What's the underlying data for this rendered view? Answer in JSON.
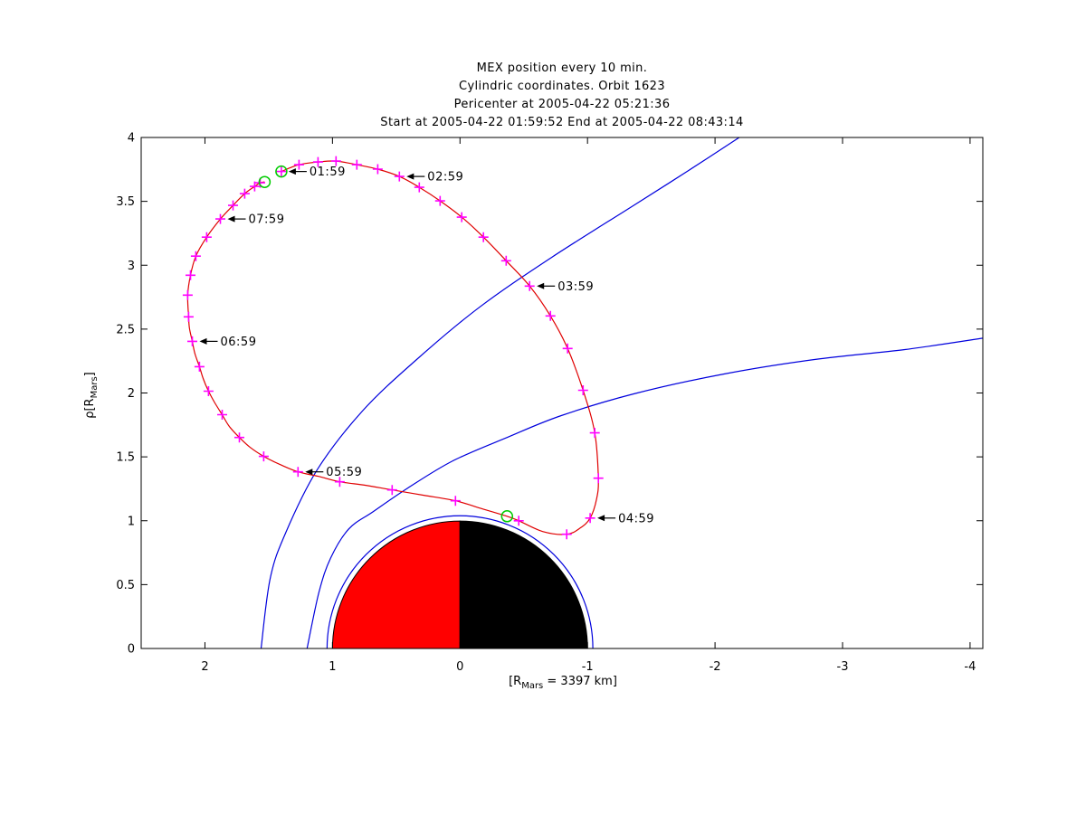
{
  "titles": [
    "MEX position every 10 min.",
    "Cylindric coordinates. Orbit 1623",
    "Pericenter at 2005-04-22 05:21:36",
    "Start at 2005-04-22 01:59:52 End at 2005-04-22 08:43:14"
  ],
  "axes": {
    "x_label_prefix": "[R",
    "x_label_sub": "Mars",
    "x_label_suffix": " = 3397 km]",
    "y_label_prefix": "ρ[R",
    "y_label_sub": "Mars",
    "y_label_suffix": "]"
  },
  "chart_data": {
    "type": "line",
    "title": "MEX position every 10 min. Cylindric coordinates. Orbit 1623",
    "xlabel": "[R_Mars = 3397 km]",
    "ylabel": "rho [R_Mars]",
    "xlim": [
      2.5,
      -4.1
    ],
    "ylim": [
      0,
      4
    ],
    "x_tick_values": [
      2,
      1,
      0,
      -1,
      -2,
      -3,
      -4
    ],
    "x_tick_labels": [
      "2",
      "1",
      "0",
      "-1",
      "-2",
      "-3",
      "-4"
    ],
    "y_tick_values": [
      0,
      0.5,
      1,
      1.5,
      2,
      2.5,
      3,
      3.5,
      4
    ],
    "y_tick_labels": [
      "0",
      "0.5",
      "1",
      "1.5",
      "2",
      "2.5",
      "3",
      "3.5",
      "4"
    ],
    "grid": false,
    "orbit_path": [
      [
        1.401,
        3.734
      ],
      [
        1.262,
        3.787
      ],
      [
        1.113,
        3.808
      ],
      [
        0.972,
        3.815
      ],
      [
        0.809,
        3.787
      ],
      [
        0.645,
        3.752
      ],
      [
        0.475,
        3.695
      ],
      [
        0.319,
        3.61
      ],
      [
        0.156,
        3.504
      ],
      [
        -0.014,
        3.376
      ],
      [
        -0.184,
        3.22
      ],
      [
        -0.362,
        3.035
      ],
      [
        -0.546,
        2.837
      ],
      [
        -0.709,
        2.603
      ],
      [
        -0.844,
        2.348
      ],
      [
        -0.965,
        2.021
      ],
      [
        -1.057,
        1.688
      ],
      [
        -1.085,
        1.333
      ],
      [
        -1.071,
        1.17
      ],
      [
        -1.021,
        1.021
      ],
      [
        -0.943,
        0.943
      ],
      [
        -0.837,
        0.894
      ],
      [
        -0.652,
        0.915
      ],
      [
        -0.461,
        1.0
      ],
      [
        -0.369,
        1.035
      ],
      [
        -0.156,
        1.099
      ],
      [
        0.035,
        1.156
      ],
      [
        0.284,
        1.199
      ],
      [
        0.532,
        1.241
      ],
      [
        0.738,
        1.277
      ],
      [
        0.943,
        1.305
      ],
      [
        1.113,
        1.348
      ],
      [
        1.27,
        1.383
      ],
      [
        1.411,
        1.44
      ],
      [
        1.539,
        1.504
      ],
      [
        1.645,
        1.574
      ],
      [
        1.73,
        1.652
      ],
      [
        1.809,
        1.738
      ],
      [
        1.865,
        1.83
      ],
      [
        1.922,
        1.922
      ],
      [
        1.972,
        2.014
      ],
      [
        2.014,
        2.113
      ],
      [
        2.043,
        2.206
      ],
      [
        2.078,
        2.305
      ],
      [
        2.099,
        2.404
      ],
      [
        2.121,
        2.504
      ],
      [
        2.128,
        2.596
      ],
      [
        2.135,
        2.766
      ],
      [
        2.113,
        2.922
      ],
      [
        2.071,
        3.071
      ],
      [
        1.986,
        3.22
      ],
      [
        1.879,
        3.362
      ],
      [
        1.78,
        3.468
      ],
      [
        1.688,
        3.56
      ],
      [
        1.61,
        3.617
      ],
      [
        1.567,
        3.645
      ],
      [
        1.532,
        3.652
      ]
    ],
    "markers_10min": [
      [
        1.401,
        3.734
      ],
      [
        1.262,
        3.787
      ],
      [
        1.113,
        3.808
      ],
      [
        0.972,
        3.815
      ],
      [
        0.809,
        3.787
      ],
      [
        0.645,
        3.752
      ],
      [
        0.475,
        3.695
      ],
      [
        0.319,
        3.61
      ],
      [
        0.156,
        3.504
      ],
      [
        -0.014,
        3.376
      ],
      [
        -0.184,
        3.22
      ],
      [
        -0.362,
        3.035
      ],
      [
        -0.546,
        2.837
      ],
      [
        -0.709,
        2.603
      ],
      [
        -0.844,
        2.348
      ],
      [
        -0.965,
        2.021
      ],
      [
        -1.057,
        1.688
      ],
      [
        -1.085,
        1.333
      ],
      [
        -1.021,
        1.021
      ],
      [
        -0.837,
        0.894
      ],
      [
        -0.461,
        1.0
      ],
      [
        0.035,
        1.156
      ],
      [
        0.532,
        1.241
      ],
      [
        0.943,
        1.305
      ],
      [
        1.27,
        1.383
      ],
      [
        1.539,
        1.504
      ],
      [
        1.73,
        1.652
      ],
      [
        1.865,
        1.83
      ],
      [
        1.972,
        2.014
      ],
      [
        2.043,
        2.206
      ],
      [
        2.099,
        2.404
      ],
      [
        2.128,
        2.596
      ],
      [
        2.135,
        2.766
      ],
      [
        2.113,
        2.922
      ],
      [
        2.071,
        3.071
      ],
      [
        1.986,
        3.22
      ],
      [
        1.879,
        3.362
      ],
      [
        1.78,
        3.468
      ],
      [
        1.688,
        3.56
      ],
      [
        1.61,
        3.617
      ],
      [
        1.567,
        3.645
      ]
    ],
    "start_point": [
      1.401,
      3.734
    ],
    "end_point": [
      1.532,
      3.652
    ],
    "pericenter_point": [
      -0.369,
      1.035
    ],
    "bow_shock": [
      [
        1.56,
        0.0
      ],
      [
        1.489,
        0.546
      ],
      [
        1.369,
        0.901
      ],
      [
        1.121,
        1.397
      ],
      [
        0.766,
        1.858
      ],
      [
        0.34,
        2.262
      ],
      [
        -0.156,
        2.674
      ],
      [
        -0.723,
        3.064
      ],
      [
        -1.362,
        3.468
      ],
      [
        -1.787,
        3.738
      ],
      [
        -2.22,
        4.02
      ]
    ],
    "mpb": [
      [
        1.199,
        0.0
      ],
      [
        1.106,
        0.44
      ],
      [
        1.014,
        0.709
      ],
      [
        0.872,
        0.936
      ],
      [
        0.681,
        1.071
      ],
      [
        0.411,
        1.255
      ],
      [
        0.057,
        1.468
      ],
      [
        -0.369,
        1.652
      ],
      [
        -0.794,
        1.823
      ],
      [
        -1.362,
        1.993
      ],
      [
        -2.071,
        2.149
      ],
      [
        -2.78,
        2.262
      ],
      [
        -3.489,
        2.34
      ],
      [
        -4.128,
        2.433
      ]
    ],
    "inner_boundary_radius": 1.042,
    "planet": {
      "radius": 1.0,
      "dayside_color": "#ff0000",
      "nightside_color": "#000000"
    },
    "annotations": [
      {
        "label": "01:59",
        "x": 1.401,
        "rho": 3.734
      },
      {
        "label": "02:59",
        "x": 0.475,
        "rho": 3.695
      },
      {
        "label": "03:59",
        "x": -0.546,
        "rho": 2.837
      },
      {
        "label": "04:59",
        "x": -1.021,
        "rho": 1.021
      },
      {
        "label": "05:59",
        "x": 1.27,
        "rho": 1.383
      },
      {
        "label": "06:59",
        "x": 2.099,
        "rho": 2.404
      },
      {
        "label": "07:59",
        "x": 1.879,
        "rho": 3.362
      }
    ],
    "legend": null
  },
  "colors": {
    "orbit": "#e00000",
    "markers": "#ff00ff",
    "boundaries": "#0000dd",
    "start_end": "#00cc00",
    "axis": "#000000",
    "background": "#ffffff"
  }
}
